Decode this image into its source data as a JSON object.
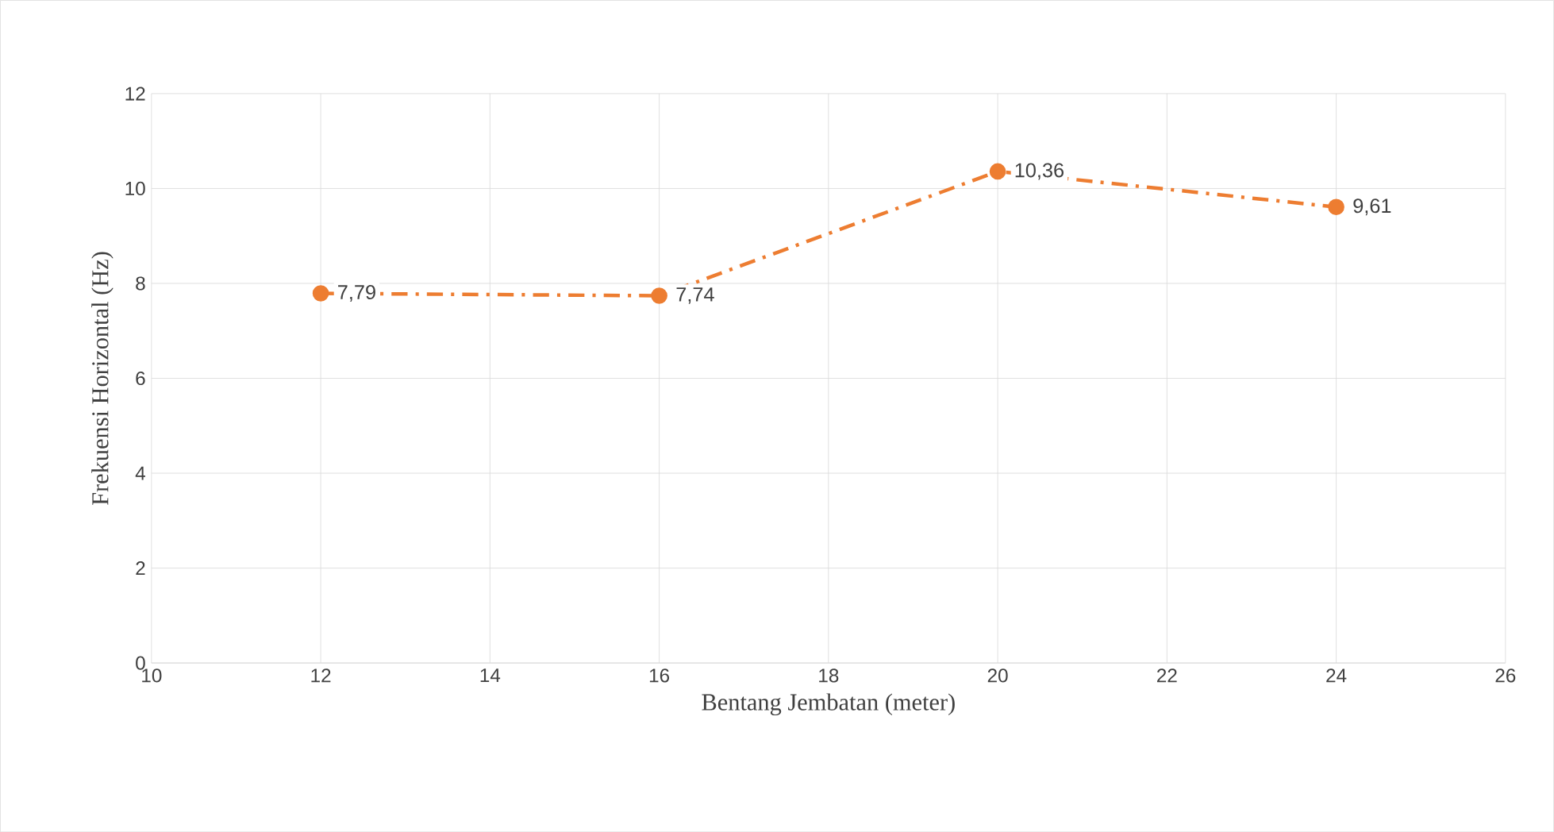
{
  "chart_data": {
    "type": "line",
    "xlabel": "Bentang Jembatan (meter)",
    "ylabel": "Frekuensi Horizontal (Hz)",
    "x": [
      12,
      16,
      20,
      24
    ],
    "series": [
      {
        "color": "#ed7d31",
        "values": [
          7.79,
          7.74,
          10.36,
          9.61
        ],
        "value_labels": [
          "7,79",
          "7,74",
          "10,36",
          "9,61"
        ]
      }
    ],
    "xlim": [
      10,
      26
    ],
    "xticks": [
      10,
      12,
      14,
      16,
      18,
      20,
      22,
      24,
      26
    ],
    "ylim": [
      0,
      12
    ],
    "yticks": [
      0,
      2,
      4,
      6,
      8,
      10,
      12
    ],
    "grid": true,
    "marker": "circle",
    "line_style": "dashed"
  }
}
